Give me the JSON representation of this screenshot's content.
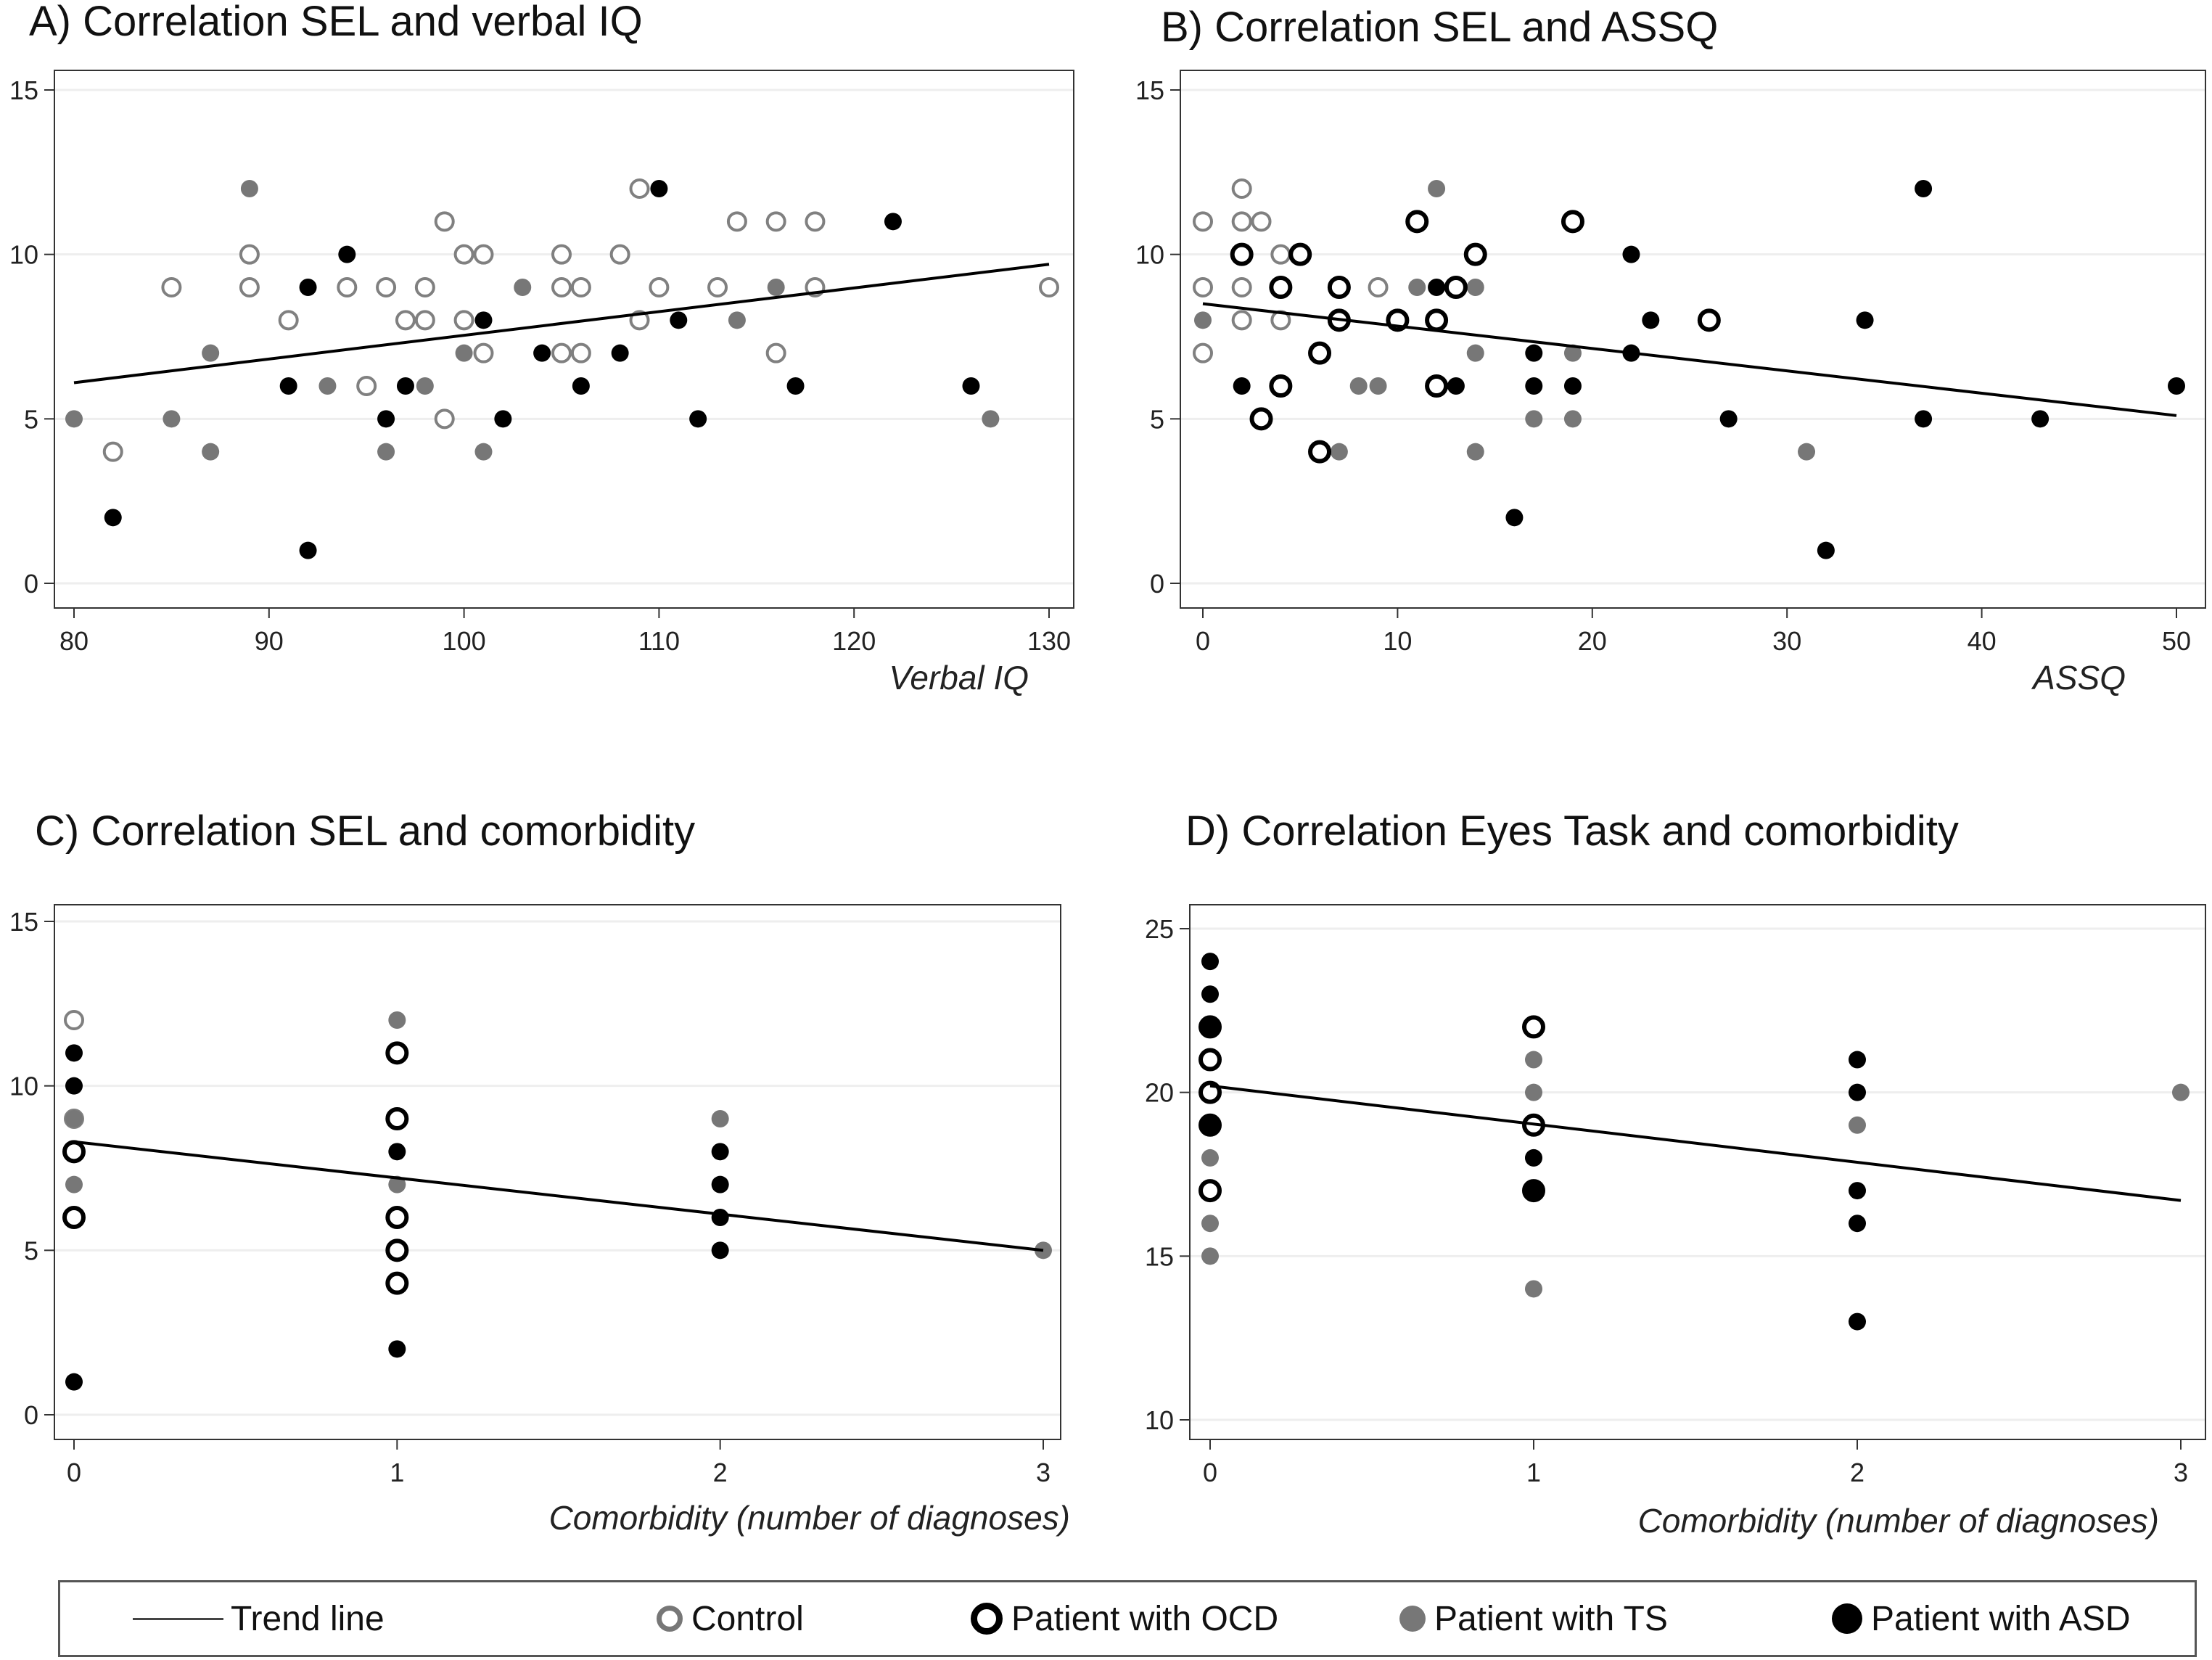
{
  "legend": {
    "trend": "Trend line",
    "control": "Control",
    "ocd": "Patient with OCD",
    "ts": "Patient with TS",
    "asd": "Patient with ASD"
  },
  "colors": {
    "control": "#808080",
    "ocd": "#000000",
    "ts": "#777777",
    "asd": "#000000",
    "trend": "#000000",
    "grid": "#eeeeee"
  },
  "chart_data": [
    {
      "id": "A",
      "type": "scatter",
      "title": "A) Correlation SEL and verbal IQ",
      "xlabel": "Verbal IQ",
      "ylabel": "",
      "xlim": [
        80,
        130
      ],
      "ylim": [
        0,
        15
      ],
      "xticks": [
        80,
        90,
        100,
        110,
        120,
        130
      ],
      "yticks": [
        0,
        5,
        10,
        15
      ],
      "grid": true,
      "trend": [
        [
          80,
          6.1
        ],
        [
          130,
          9.7
        ]
      ],
      "series": [
        {
          "group": "control",
          "points": [
            [
              82,
              4
            ],
            [
              85,
              9
            ],
            [
              89,
              10
            ],
            [
              89,
              9
            ],
            [
              91,
              8
            ],
            [
              94,
              9
            ],
            [
              95,
              6
            ],
            [
              96,
              9
            ],
            [
              97,
              8
            ],
            [
              98,
              9
            ],
            [
              98,
              8
            ],
            [
              99,
              11
            ],
            [
              99,
              5
            ],
            [
              100,
              10
            ],
            [
              100,
              8
            ],
            [
              101,
              10
            ],
            [
              101,
              7
            ],
            [
              105,
              10
            ],
            [
              105,
              9
            ],
            [
              105,
              7
            ],
            [
              106,
              9
            ],
            [
              106,
              7
            ],
            [
              108,
              10
            ],
            [
              109,
              12
            ],
            [
              109,
              8
            ],
            [
              110,
              9
            ],
            [
              113,
              9
            ],
            [
              114,
              11
            ],
            [
              116,
              11
            ],
            [
              116,
              7
            ],
            [
              118,
              11
            ],
            [
              118,
              9
            ],
            [
              130,
              9
            ]
          ]
        },
        {
          "group": "ts",
          "points": [
            [
              80,
              5
            ],
            [
              85,
              5
            ],
            [
              87,
              7
            ],
            [
              87,
              4
            ],
            [
              89,
              12
            ],
            [
              93,
              6
            ],
            [
              96,
              4
            ],
            [
              98,
              6
            ],
            [
              100,
              7
            ],
            [
              101,
              4
            ],
            [
              103,
              9
            ],
            [
              114,
              8
            ],
            [
              116,
              9
            ],
            [
              127,
              5
            ]
          ]
        },
        {
          "group": "asd",
          "points": [
            [
              82,
              2
            ],
            [
              91,
              6
            ],
            [
              92,
              9
            ],
            [
              92,
              1
            ],
            [
              94,
              10
            ],
            [
              96,
              5
            ],
            [
              97,
              6
            ],
            [
              101,
              8
            ],
            [
              102,
              5
            ],
            [
              104,
              7
            ],
            [
              106,
              6
            ],
            [
              108,
              7
            ],
            [
              110,
              12
            ],
            [
              111,
              8
            ],
            [
              112,
              5
            ],
            [
              117,
              6
            ],
            [
              122,
              11
            ],
            [
              126,
              6
            ]
          ]
        }
      ]
    },
    {
      "id": "B",
      "type": "scatter",
      "title": "B) Correlation SEL and ASSQ",
      "xlabel": "ASSQ",
      "ylabel": "",
      "xlim": [
        0,
        50
      ],
      "ylim": [
        0,
        15
      ],
      "xticks": [
        0,
        10,
        20,
        30,
        40,
        50
      ],
      "yticks": [
        0,
        5,
        10,
        15
      ],
      "grid": true,
      "trend": [
        [
          0,
          8.5
        ],
        [
          50,
          5.1
        ]
      ],
      "series": [
        {
          "group": "control",
          "points": [
            [
              0,
              11
            ],
            [
              0,
              9
            ],
            [
              0,
              7
            ],
            [
              2,
              12
            ],
            [
              2,
              11
            ],
            [
              2,
              9
            ],
            [
              2,
              8
            ],
            [
              3,
              11
            ],
            [
              4,
              10
            ],
            [
              4,
              9
            ],
            [
              4,
              8
            ],
            [
              7,
              9
            ],
            [
              9,
              9
            ]
          ]
        },
        {
          "group": "ocd",
          "points": [
            [
              2,
              10
            ],
            [
              3,
              5
            ],
            [
              4,
              9
            ],
            [
              4,
              6
            ],
            [
              5,
              10
            ],
            [
              6,
              7
            ],
            [
              6,
              4
            ],
            [
              7,
              9
            ],
            [
              7,
              8
            ],
            [
              10,
              8
            ],
            [
              11,
              11
            ],
            [
              12,
              8
            ],
            [
              12,
              6
            ],
            [
              13,
              9
            ],
            [
              14,
              10
            ],
            [
              19,
              11
            ],
            [
              26,
              8
            ]
          ]
        },
        {
          "group": "ts",
          "points": [
            [
              0,
              8
            ],
            [
              7,
              4
            ],
            [
              8,
              6
            ],
            [
              9,
              6
            ],
            [
              11,
              9
            ],
            [
              12,
              12
            ],
            [
              14,
              9
            ],
            [
              14,
              7
            ],
            [
              14,
              4
            ],
            [
              17,
              5
            ],
            [
              19,
              7
            ],
            [
              19,
              5
            ],
            [
              31,
              4
            ]
          ]
        },
        {
          "group": "asd",
          "points": [
            [
              2,
              6
            ],
            [
              12,
              9
            ],
            [
              13,
              6
            ],
            [
              16,
              2
            ],
            [
              17,
              7
            ],
            [
              17,
              6
            ],
            [
              19,
              6
            ],
            [
              22,
              10
            ],
            [
              22,
              7
            ],
            [
              23,
              8
            ],
            [
              27,
              5
            ],
            [
              32,
              1
            ],
            [
              34,
              8
            ],
            [
              37,
              12
            ],
            [
              37,
              5
            ],
            [
              43,
              5
            ],
            [
              50,
              6
            ]
          ]
        }
      ]
    },
    {
      "id": "C",
      "type": "scatter",
      "title": "C) Correlation SEL and comorbidity",
      "xlabel": "Comorbidity (number of diagnoses)",
      "ylabel": "",
      "xlim": [
        0,
        3
      ],
      "ylim": [
        0,
        15
      ],
      "xticks": [
        0,
        1,
        2,
        3
      ],
      "yticks": [
        0,
        5,
        10,
        15
      ],
      "grid": true,
      "trend": [
        [
          0,
          8.3
        ],
        [
          3,
          5.0
        ]
      ],
      "series": [
        {
          "group": "control",
          "points": [
            [
              0,
              12
            ],
            [
              0,
              9
            ]
          ]
        },
        {
          "group": "ocd",
          "points": [
            [
              1,
              11
            ],
            [
              1,
              9
            ],
            [
              1,
              6
            ],
            [
              1,
              5
            ],
            [
              1,
              4
            ],
            [
              0,
              8
            ],
            [
              0,
              6
            ]
          ]
        },
        {
          "group": "ts",
          "points": [
            [
              0,
              9
            ],
            [
              0,
              8
            ],
            [
              0,
              7
            ],
            [
              0,
              6
            ],
            [
              1,
              12
            ],
            [
              1,
              7
            ],
            [
              1,
              6
            ],
            [
              1,
              5
            ],
            [
              1,
              4
            ],
            [
              2,
              9
            ],
            [
              3,
              5
            ]
          ]
        },
        {
          "group": "asd",
          "points": [
            [
              0,
              11
            ],
            [
              0,
              10
            ],
            [
              0,
              1
            ],
            [
              1,
              8
            ],
            [
              1,
              2
            ],
            [
              2,
              8
            ],
            [
              2,
              7
            ],
            [
              2,
              6
            ],
            [
              2,
              5
            ]
          ]
        }
      ]
    },
    {
      "id": "D",
      "type": "scatter",
      "title": "D) Correlation Eyes Task and comorbidity",
      "xlabel": "Comorbidity (number of diagnoses)",
      "ylabel": "",
      "xlim": [
        0,
        3
      ],
      "ylim": [
        10,
        25
      ],
      "xticks": [
        0,
        1,
        2,
        3
      ],
      "yticks": [
        10,
        15,
        20,
        25
      ],
      "grid": true,
      "trend": [
        [
          0,
          20.2
        ],
        [
          3,
          16.7
        ]
      ],
      "series": [
        {
          "group": "control",
          "points": [
            [
              0,
              21
            ],
            [
              0,
              20
            ]
          ]
        },
        {
          "group": "ocd",
          "points": [
            [
              0,
              22
            ],
            [
              0,
              21
            ],
            [
              0,
              20
            ],
            [
              0,
              19
            ],
            [
              0,
              17
            ],
            [
              1,
              22
            ],
            [
              1,
              19
            ],
            [
              1,
              17
            ]
          ]
        },
        {
          "group": "ts",
          "points": [
            [
              0,
              18
            ],
            [
              0,
              16
            ],
            [
              0,
              15
            ],
            [
              1,
              21
            ],
            [
              1,
              20
            ],
            [
              1,
              19
            ],
            [
              1,
              18
            ],
            [
              1,
              14
            ],
            [
              2,
              19
            ],
            [
              3,
              20
            ]
          ]
        },
        {
          "group": "asd",
          "points": [
            [
              0,
              24
            ],
            [
              0,
              23
            ],
            [
              0,
              22
            ],
            [
              0,
              19
            ],
            [
              1,
              18
            ],
            [
              1,
              17
            ],
            [
              2,
              21
            ],
            [
              2,
              20
            ],
            [
              2,
              17
            ],
            [
              2,
              16
            ],
            [
              2,
              13
            ]
          ]
        }
      ]
    }
  ]
}
